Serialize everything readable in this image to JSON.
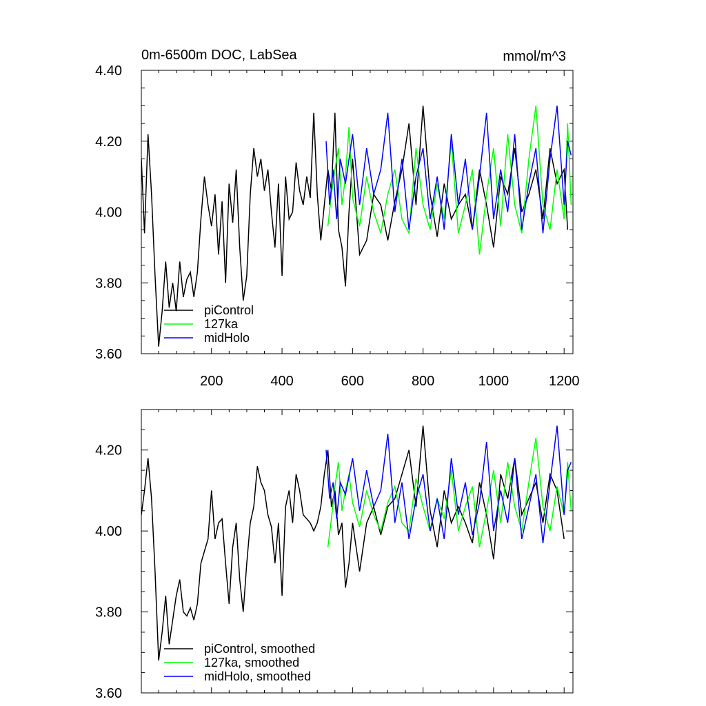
{
  "chart_data": [
    {
      "type": "line",
      "title": "0m-6500m DOC, LabSea",
      "units": "mmol/m^3",
      "xlim": [
        1,
        1225
      ],
      "ylim": [
        3.6,
        4.4
      ],
      "x_ticks": [
        "200",
        "400",
        "600",
        "800",
        "1000",
        "1200"
      ],
      "y_ticks": [
        "3.60",
        "3.80",
        "4.00",
        "4.20",
        "4.40"
      ],
      "grid": false,
      "legend_position": "bottom-left",
      "series": [
        {
          "name": "piControl",
          "color": "#000000",
          "x": [
            1,
            10,
            20,
            30,
            40,
            50,
            60,
            70,
            80,
            90,
            100,
            110,
            120,
            130,
            140,
            150,
            160,
            170,
            180,
            190,
            200,
            210,
            220,
            230,
            240,
            250,
            260,
            270,
            280,
            290,
            300,
            310,
            320,
            330,
            340,
            350,
            360,
            370,
            380,
            390,
            400,
            410,
            420,
            430,
            440,
            450,
            460,
            470,
            480,
            490,
            500,
            510,
            520,
            530,
            540,
            550,
            560,
            570,
            580,
            590,
            600,
            620,
            640,
            660,
            680,
            700,
            720,
            740,
            760,
            780,
            800,
            820,
            840,
            860,
            880,
            900,
            920,
            940,
            960,
            980,
            1000,
            1020,
            1040,
            1060,
            1080,
            1100,
            1120,
            1140,
            1160,
            1180,
            1200,
            1210
          ],
          "values": [
            4.15,
            3.94,
            4.22,
            4.05,
            3.82,
            3.62,
            3.72,
            3.86,
            3.73,
            3.8,
            3.72,
            3.86,
            3.76,
            3.81,
            3.83,
            3.76,
            3.83,
            3.98,
            4.1,
            4.02,
            3.96,
            4.05,
            3.88,
            4.03,
            3.8,
            4.08,
            3.97,
            4.12,
            3.9,
            3.75,
            3.82,
            4.05,
            4.18,
            4.1,
            4.15,
            4.06,
            4.12,
            4.0,
            3.9,
            4.08,
            3.82,
            4.1,
            3.98,
            4.0,
            4.14,
            4.06,
            4.02,
            4.1,
            4.04,
            4.28,
            4.05,
            3.92,
            4.02,
            4.12,
            4.06,
            4.28,
            3.95,
            3.9,
            3.79,
            4.0,
            4.15,
            3.88,
            3.92,
            4.05,
            4.02,
            3.92,
            4.03,
            4.12,
            4.25,
            4.02,
            4.3,
            4.05,
            3.93,
            4.08,
            3.98,
            4.02,
            4.05,
            3.95,
            4.12,
            4.02,
            3.9,
            4.1,
            4.05,
            4.18,
            4.0,
            4.05,
            4.12,
            3.98,
            4.18,
            4.08,
            4.12,
            3.95
          ]
        },
        {
          "name": "127ka",
          "color": "#00ff00",
          "x": [
            530,
            540,
            550,
            560,
            570,
            580,
            590,
            600,
            620,
            640,
            660,
            680,
            700,
            720,
            740,
            760,
            780,
            800,
            820,
            840,
            860,
            880,
            900,
            920,
            940,
            960,
            980,
            1000,
            1020,
            1040,
            1060,
            1080,
            1100,
            1120,
            1140,
            1160,
            1180,
            1200,
            1210,
            1220
          ],
          "values": [
            3.96,
            4.05,
            4.12,
            4.18,
            4.02,
            4.1,
            4.24,
            4.04,
            3.96,
            4.1,
            4.0,
            3.94,
            4.05,
            4.12,
            3.98,
            3.94,
            4.18,
            4.02,
            3.95,
            4.08,
            3.98,
            4.2,
            3.94,
            4.02,
            4.12,
            3.88,
            4.05,
            4.18,
            3.96,
            4.22,
            4.02,
            3.94,
            4.15,
            4.3,
            4.02,
            3.95,
            4.12,
            3.98,
            4.25,
            4.02
          ]
        },
        {
          "name": "midHolo",
          "color": "#0000ff",
          "x": [
            525,
            535,
            545,
            555,
            565,
            580,
            600,
            620,
            640,
            660,
            680,
            700,
            720,
            740,
            760,
            780,
            800,
            820,
            840,
            860,
            880,
            900,
            920,
            940,
            960,
            980,
            1000,
            1020,
            1040,
            1060,
            1080,
            1100,
            1120,
            1140,
            1160,
            1180,
            1200,
            1210,
            1220
          ],
          "values": [
            4.2,
            4.02,
            4.12,
            3.98,
            4.15,
            4.08,
            4.22,
            4.02,
            4.18,
            4.05,
            4.12,
            4.28,
            4.0,
            4.15,
            3.95,
            4.1,
            4.18,
            3.98,
            4.1,
            3.95,
            4.22,
            4.02,
            4.15,
            3.95,
            4.1,
            4.28,
            3.98,
            4.12,
            4.0,
            4.22,
            3.95,
            4.08,
            4.18,
            3.94,
            4.15,
            4.3,
            4.02,
            4.2,
            4.16
          ]
        }
      ],
      "legend": [
        "piControl",
        "127ka",
        "midHolo"
      ]
    },
    {
      "type": "line",
      "title": "",
      "xlim": [
        1,
        1225
      ],
      "ylim": [
        3.6,
        4.3
      ],
      "y_ticks": [
        "3.60",
        "3.80",
        "4.00",
        "4.20"
      ],
      "grid": false,
      "legend_position": "bottom-left",
      "series": [
        {
          "name": "piControl, smoothed",
          "color": "#000000",
          "x": [
            1,
            10,
            20,
            30,
            40,
            50,
            60,
            70,
            80,
            90,
            100,
            110,
            120,
            130,
            140,
            150,
            160,
            170,
            180,
            190,
            200,
            210,
            220,
            230,
            240,
            250,
            260,
            270,
            280,
            290,
            300,
            310,
            320,
            330,
            340,
            350,
            360,
            370,
            380,
            390,
            400,
            410,
            420,
            430,
            440,
            450,
            460,
            470,
            480,
            490,
            500,
            510,
            520,
            530,
            540,
            550,
            560,
            570,
            580,
            590,
            600,
            620,
            640,
            660,
            680,
            700,
            720,
            740,
            760,
            780,
            800,
            820,
            840,
            860,
            880,
            900,
            920,
            940,
            960,
            980,
            1000,
            1020,
            1040,
            1060,
            1080,
            1100,
            1120,
            1140,
            1160,
            1180,
            1200
          ],
          "values": [
            4.04,
            4.1,
            4.18,
            4.08,
            3.9,
            3.68,
            3.75,
            3.84,
            3.72,
            3.78,
            3.84,
            3.88,
            3.8,
            3.79,
            3.81,
            3.78,
            3.82,
            3.92,
            3.95,
            3.98,
            4.1,
            3.98,
            4.02,
            4.03,
            3.92,
            3.82,
            3.96,
            4.02,
            3.88,
            3.8,
            3.92,
            4.02,
            4.06,
            4.16,
            4.12,
            4.1,
            4.04,
            4.01,
            3.92,
            4.02,
            3.84,
            4.06,
            4.1,
            4.02,
            4.14,
            4.1,
            4.04,
            4.03,
            4.02,
            4.0,
            4.02,
            4.06,
            4.14,
            4.2,
            4.06,
            4.1,
            3.99,
            4.02,
            3.86,
            3.92,
            4.02,
            3.9,
            4.02,
            4.06,
            3.99,
            4.06,
            4.08,
            4.14,
            4.2,
            4.06,
            4.26,
            4.05,
            3.96,
            4.1,
            4.02,
            4.06,
            4.02,
            3.97,
            4.12,
            4.04,
            3.93,
            4.14,
            4.08,
            4.18,
            4.04,
            4.08,
            4.12,
            4.02,
            4.14,
            4.1,
            3.98
          ]
        },
        {
          "name": "127ka, smoothed",
          "color": "#00ff00",
          "x": [
            530,
            540,
            550,
            560,
            570,
            580,
            590,
            600,
            620,
            640,
            660,
            680,
            700,
            720,
            740,
            760,
            780,
            800,
            820,
            840,
            860,
            880,
            900,
            920,
            940,
            960,
            980,
            1000,
            1020,
            1040,
            1060,
            1080,
            1100,
            1120,
            1140,
            1160,
            1180,
            1200,
            1210,
            1220
          ],
          "values": [
            3.96,
            4.03,
            4.11,
            4.17,
            4.05,
            4.1,
            4.14,
            4.07,
            4.01,
            4.1,
            4.04,
            4.0,
            4.07,
            4.11,
            4.02,
            4.0,
            4.13,
            4.06,
            4.0,
            4.08,
            4.03,
            4.15,
            4.0,
            4.06,
            4.11,
            3.96,
            4.05,
            4.15,
            4.02,
            4.17,
            4.06,
            4.0,
            4.12,
            4.23,
            4.06,
            4.0,
            4.11,
            4.04,
            4.17,
            4.05
          ]
        },
        {
          "name": "midHolo, smoothed",
          "color": "#0000ff",
          "x": [
            525,
            535,
            545,
            555,
            565,
            580,
            600,
            620,
            640,
            660,
            680,
            700,
            720,
            740,
            760,
            780,
            800,
            820,
            840,
            860,
            880,
            900,
            920,
            940,
            960,
            980,
            1000,
            1020,
            1040,
            1060,
            1080,
            1100,
            1120,
            1140,
            1160,
            1180,
            1200,
            1210,
            1220
          ],
          "values": [
            4.2,
            4.08,
            4.12,
            4.03,
            4.12,
            4.09,
            4.18,
            4.05,
            4.15,
            4.06,
            4.1,
            4.24,
            4.02,
            4.12,
            3.98,
            4.08,
            4.14,
            4.0,
            4.08,
            3.98,
            4.18,
            4.04,
            4.12,
            3.99,
            4.07,
            4.22,
            4.0,
            4.1,
            4.02,
            4.18,
            3.98,
            4.06,
            4.14,
            3.97,
            4.12,
            4.26,
            4.04,
            4.15,
            4.17
          ]
        }
      ],
      "legend": [
        "piControl, smoothed",
        "127ka, smoothed",
        "midHolo, smoothed"
      ]
    }
  ]
}
